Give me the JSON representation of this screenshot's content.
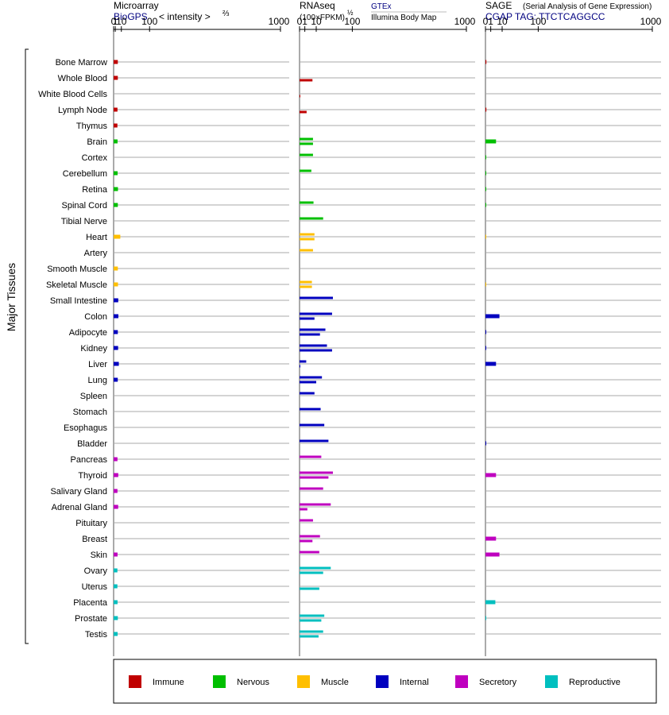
{
  "chart_data": {
    "type": "bar",
    "group_label": "Major Tissues",
    "panels": [
      {
        "id": "microarray",
        "title": "Microarray",
        "source": "BioGPS",
        "scale_note": "< intensity >",
        "scale_exp": "⅔",
        "ticks": [
          "0",
          "1",
          "10",
          "100",
          "1000"
        ],
        "xlim": [
          0,
          1000
        ],
        "values": [
          4.0,
          4.0,
          null,
          3.5,
          3.4,
          3.6,
          null,
          3.7,
          4.2,
          4.0,
          null,
          8.0,
          null,
          4.0,
          4.2,
          4.6,
          4.8,
          4.0,
          4.4,
          5.5,
          3.9,
          null,
          null,
          null,
          null,
          3.5,
          4.6,
          3.5,
          4.5,
          null,
          null,
          3.6,
          3.4,
          3.4,
          3.6,
          4.0,
          3.7
        ]
      },
      {
        "id": "rnaseq",
        "title": "RNAseq",
        "scale_note": "(100×FPKM)",
        "scale_exp": "½",
        "sources": [
          "GTEx",
          "Illumina Body Map"
        ],
        "ticks": [
          "0",
          "1",
          "10",
          "100",
          "1000"
        ],
        "xlim": [
          0,
          1000
        ],
        "values_gtex": [
          null,
          null,
          null,
          null,
          null,
          6.5,
          6.5,
          5.0,
          null,
          7.0,
          20.0,
          8.0,
          6.5,
          null,
          5.5,
          40.0,
          38.0,
          24.0,
          27.0,
          1.6,
          18.0,
          8.0,
          16.0,
          22.0,
          30.0,
          17.0,
          40.0,
          20.0,
          35.0,
          6.5,
          15.0,
          14.0,
          35.0,
          null,
          null,
          22.0,
          20.0
        ],
        "values_illumina": [
          null,
          6.0,
          0.02,
          1.8,
          null,
          6.5,
          null,
          null,
          null,
          null,
          null,
          8.0,
          null,
          null,
          5.5,
          null,
          8.0,
          15.0,
          38.0,
          0.02,
          10.0,
          null,
          null,
          null,
          null,
          null,
          30.0,
          null,
          2.2,
          null,
          6.0,
          null,
          20.0,
          14.0,
          null,
          17.0,
          13.0
        ]
      },
      {
        "id": "sage",
        "title": "SAGE",
        "subtitle": "(Serial Analysis of Gene Expression)",
        "tag_label": "CGAP TAG: TTCTCAGGCC",
        "ticks": [
          "0",
          "1",
          "10",
          "100",
          "1000"
        ],
        "xlim": [
          0,
          1000
        ],
        "values": [
          0.03,
          null,
          null,
          0.03,
          null,
          4.0,
          0.01,
          0.01,
          0.01,
          0.01,
          null,
          0.005,
          null,
          null,
          0.005,
          null,
          7.0,
          0.02,
          0.02,
          4.0,
          null,
          null,
          null,
          null,
          0.02,
          null,
          4.0,
          null,
          null,
          null,
          4.0,
          7.0,
          null,
          null,
          3.5,
          0.01,
          null
        ]
      }
    ],
    "categories": [
      "Bone Marrow",
      "Whole Blood",
      "White Blood Cells",
      "Lymph Node",
      "Thymus",
      "Brain",
      "Cortex",
      "Cerebellum",
      "Retina",
      "Spinal Cord",
      "Tibial Nerve",
      "Heart",
      "Artery",
      "Smooth Muscle",
      "Skeletal Muscle",
      "Small Intestine",
      "Colon",
      "Adipocyte",
      "Kidney",
      "Liver",
      "Lung",
      "Spleen",
      "Stomach",
      "Esophagus",
      "Bladder",
      "Pancreas",
      "Thyroid",
      "Salivary Gland",
      "Adrenal Gland",
      "Pituitary",
      "Breast",
      "Skin",
      "Ovary",
      "Uterus",
      "Placenta",
      "Prostate",
      "Testis"
    ],
    "tissue_groups": [
      "Immune",
      "Immune",
      "Immune",
      "Immune",
      "Immune",
      "Nervous",
      "Nervous",
      "Nervous",
      "Nervous",
      "Nervous",
      "Nervous",
      "Muscle",
      "Muscle",
      "Muscle",
      "Muscle",
      "Internal",
      "Internal",
      "Internal",
      "Internal",
      "Internal",
      "Internal",
      "Internal",
      "Internal",
      "Internal",
      "Internal",
      "Secretory",
      "Secretory",
      "Secretory",
      "Secretory",
      "Secretory",
      "Secretory",
      "Secretory",
      "Reproductive",
      "Reproductive",
      "Reproductive",
      "Reproductive",
      "Reproductive"
    ],
    "legend": [
      {
        "name": "Immune",
        "color": "#c00000"
      },
      {
        "name": "Nervous",
        "color": "#00bf00"
      },
      {
        "name": "Muscle",
        "color": "#ffbf00"
      },
      {
        "name": "Internal",
        "color": "#0000bf"
      },
      {
        "name": "Secretory",
        "color": "#bf00bf"
      },
      {
        "name": "Reproductive",
        "color": "#00bfbf"
      }
    ],
    "legend_position": "bottom",
    "grid": true
  }
}
